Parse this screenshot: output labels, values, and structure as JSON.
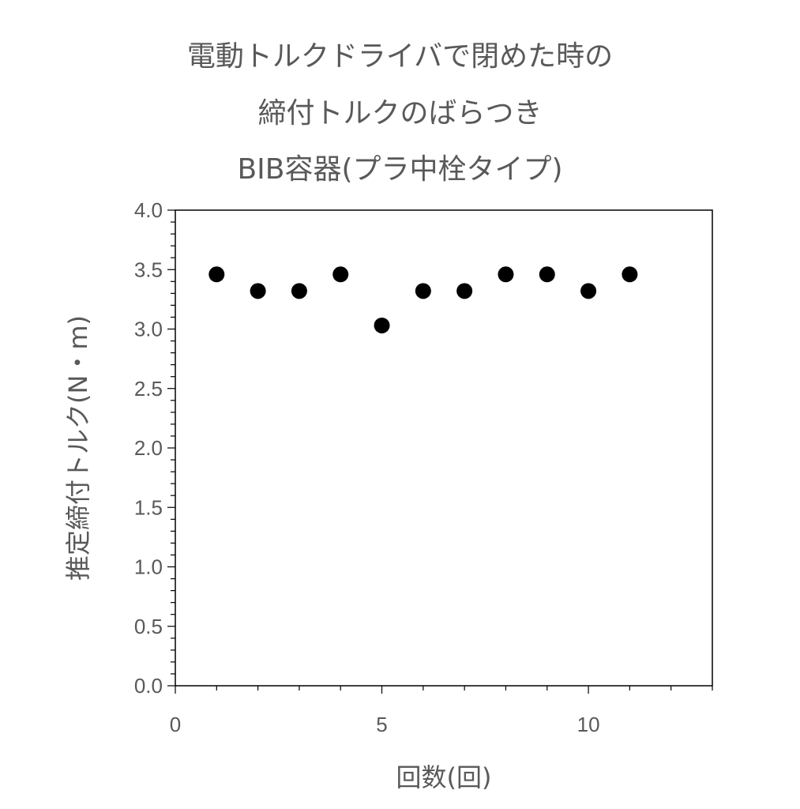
{
  "chart_data": {
    "type": "scatter",
    "title_lines": [
      "電動トルクドライバで閉めた時の",
      "締付トルクのばらつき",
      "BIB容器(プラ中栓タイプ)"
    ],
    "xlabel": "回数(回)",
    "ylabel": "推定締付トルク(N・m)",
    "xlim": [
      0,
      13
    ],
    "ylim": [
      0,
      4.0
    ],
    "x_major_ticks": [
      0,
      5,
      10
    ],
    "x_tick_labels": [
      "0",
      "5",
      "10"
    ],
    "y_major_ticks": [
      0,
      0.5,
      1.0,
      1.5,
      2.0,
      2.5,
      3.0,
      3.5,
      4.0
    ],
    "y_tick_labels": [
      "0.0",
      "0.5",
      "1.0",
      "1.5",
      "2.0",
      "2.5",
      "3.0",
      "3.5",
      "4.0"
    ],
    "grid": false,
    "legend": false,
    "marker_color": "#000000",
    "axis_color": "#000000",
    "text_color": "#595959",
    "x": [
      1,
      2,
      3,
      4,
      5,
      6,
      7,
      8,
      9,
      10,
      11
    ],
    "y": [
      3.46,
      3.32,
      3.32,
      3.46,
      3.03,
      3.32,
      3.32,
      3.46,
      3.46,
      3.32,
      3.46
    ]
  }
}
